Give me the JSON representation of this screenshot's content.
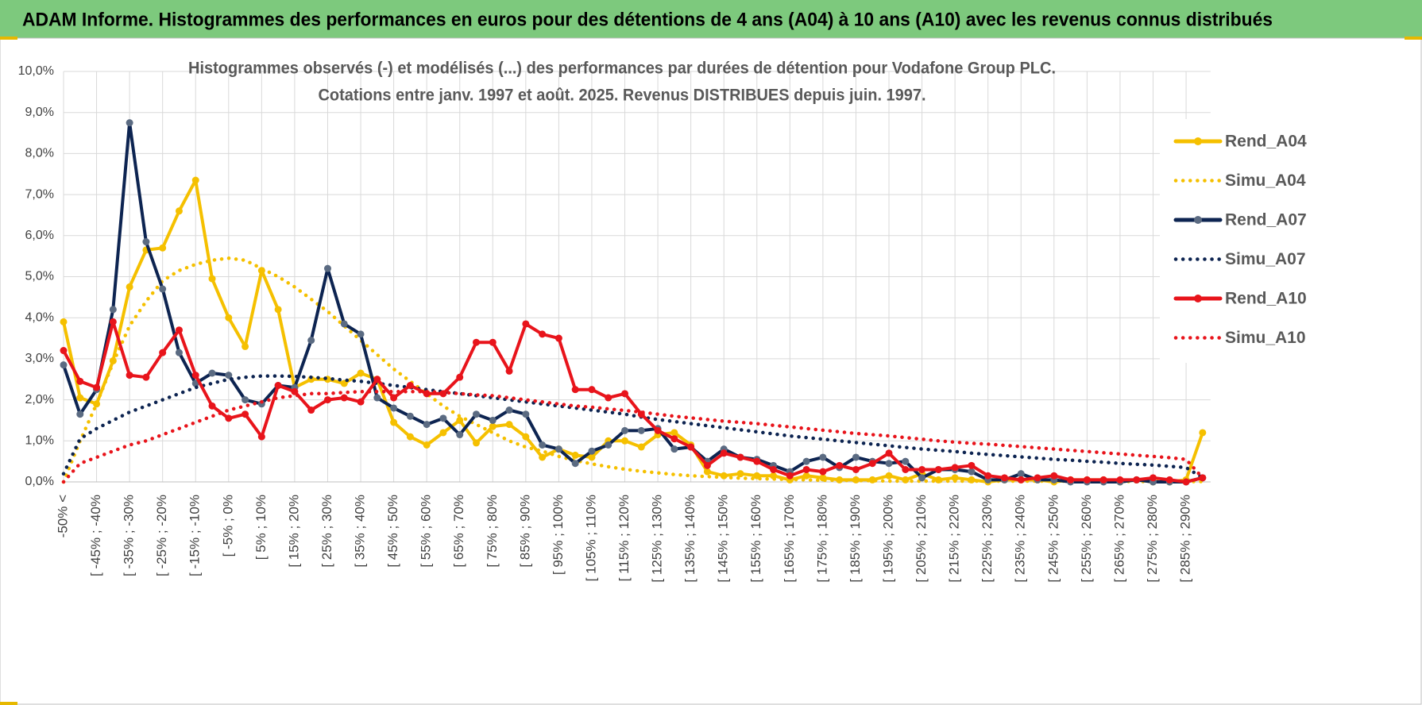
{
  "header": {
    "title": "ADAM Informe. Histogrammes des performances en euros pour des détentions de 4 ans (A04) à 10 ans (A10) avec les revenus connus distribués"
  },
  "chart_data": {
    "type": "line",
    "title": "Histogrammes observés (-) et modélisés (...) des performances par durées de détention pour Vodafone Group PLC.",
    "subtitle": "Cotations entre janv. 1997 et août. 2025. Revenus DISTRIBUES depuis juin. 1997.",
    "categories": [
      "-50% <",
      null,
      "[ -45% ; -40%",
      null,
      "[ -35% ; -30%",
      null,
      "[ -25% ; -20%",
      null,
      "[ -15% ; -10%",
      null,
      "[ -5% ; 0%",
      null,
      "[ 5% ; 10%",
      null,
      "[ 15% ; 20%",
      null,
      "[ 25% ; 30%",
      null,
      "[ 35% ; 40%",
      null,
      "[ 45% ; 50%",
      null,
      "[ 55% ; 60%",
      null,
      "[ 65% ; 70%",
      null,
      "[ 75% ; 80%",
      null,
      "[ 85% ; 90%",
      null,
      "[ 95% ; 100%",
      null,
      "[ 105% ; 110%",
      null,
      "[ 115% ; 120%",
      null,
      "[ 125% ; 130%",
      null,
      "[ 135% ; 140%",
      null,
      "[ 145% ; 150%",
      null,
      "[ 155% ; 160%",
      null,
      "[ 165% ; 170%",
      null,
      "[ 175% ; 180%",
      null,
      "[ 185% ; 190%",
      null,
      "[ 195% ; 200%",
      null,
      "[ 205% ; 210%",
      null,
      "[ 215% ; 220%",
      null,
      "[ 225% ; 230%",
      null,
      "[ 235% ; 240%",
      null,
      "[ 245% ; 250%",
      null,
      "[ 255% ; 260%",
      null,
      "[ 265% ; 270%",
      null,
      "[ 275% ; 280%",
      null,
      "[ 285% ; 290%",
      null
    ],
    "ylim": [
      0,
      10
    ],
    "yticks": [
      {
        "value": 0,
        "label": "0,0%"
      },
      {
        "value": 1,
        "label": "1,0%"
      },
      {
        "value": 2,
        "label": "2,0%"
      },
      {
        "value": 3,
        "label": "3,0%"
      },
      {
        "value": 4,
        "label": "4,0%"
      },
      {
        "value": 5,
        "label": "5,0%"
      },
      {
        "value": 6,
        "label": "6,0%"
      },
      {
        "value": 7,
        "label": "7,0%"
      },
      {
        "value": 8,
        "label": "8,0%"
      },
      {
        "value": 9,
        "label": "9,0%"
      },
      {
        "value": 10,
        "label": "10,0%"
      }
    ],
    "grid": true,
    "legend": "right",
    "series": [
      {
        "name": "Rend_A04",
        "color": "#f5c000",
        "line_style": "solid",
        "markers": true,
        "values": [
          3.9,
          2.05,
          1.9,
          2.95,
          4.75,
          5.65,
          5.7,
          6.6,
          7.35,
          4.95,
          4.0,
          3.3,
          5.15,
          4.2,
          2.3,
          2.5,
          2.5,
          2.4,
          2.65,
          2.5,
          1.45,
          1.1,
          0.9,
          1.2,
          1.5,
          0.95,
          1.35,
          1.4,
          1.1,
          0.6,
          0.8,
          0.65,
          0.6,
          1.0,
          1.0,
          0.85,
          1.15,
          1.2,
          0.9,
          0.25,
          0.15,
          0.2,
          0.15,
          0.15,
          0.05,
          0.15,
          0.1,
          0.05,
          0.05,
          0.05,
          0.15,
          0.05,
          0.2,
          0.05,
          0.1,
          0.05,
          0.0,
          0.05,
          0.05,
          0.05,
          0.0,
          0.05,
          0.05,
          0.05,
          0.0,
          0.05,
          0.0,
          0.0,
          0.05,
          1.2
        ]
      },
      {
        "name": "Simu_A04",
        "color": "#f5c000",
        "line_style": "dotted",
        "markers": false,
        "values": [
          0.0,
          1.0,
          1.9,
          2.9,
          3.8,
          4.4,
          4.9,
          5.15,
          5.3,
          5.4,
          5.45,
          5.4,
          5.2,
          5.0,
          4.75,
          4.45,
          4.15,
          3.8,
          3.45,
          3.1,
          2.75,
          2.45,
          2.15,
          1.85,
          1.6,
          1.4,
          1.2,
          1.0,
          0.85,
          0.75,
          0.62,
          0.52,
          0.44,
          0.37,
          0.31,
          0.26,
          0.22,
          0.18,
          0.15,
          0.13,
          0.11,
          0.09,
          0.08,
          0.07,
          0.06,
          0.05,
          0.04,
          0.04,
          0.03,
          0.03,
          0.02,
          0.02,
          0.02,
          0.02,
          0.02,
          0.02,
          0.02,
          0.02,
          0.02,
          0.02,
          0.02,
          0.02,
          0.02,
          0.02,
          0.01,
          0.01,
          0.01,
          0.01,
          0.01,
          0.01
        ]
      },
      {
        "name": "Rend_A07",
        "color": "#0d2451",
        "line_style": "solid",
        "markers": true,
        "values": [
          2.85,
          1.65,
          2.25,
          4.2,
          8.75,
          5.85,
          4.7,
          3.15,
          2.4,
          2.65,
          2.6,
          2.0,
          1.9,
          2.35,
          2.3,
          3.45,
          5.2,
          3.85,
          3.6,
          2.05,
          1.8,
          1.6,
          1.4,
          1.55,
          1.15,
          1.65,
          1.5,
          1.75,
          1.65,
          0.9,
          0.8,
          0.45,
          0.75,
          0.9,
          1.25,
          1.25,
          1.3,
          0.8,
          0.85,
          0.5,
          0.8,
          0.6,
          0.55,
          0.4,
          0.25,
          0.5,
          0.6,
          0.35,
          0.6,
          0.5,
          0.45,
          0.5,
          0.1,
          0.3,
          0.3,
          0.25,
          0.05,
          0.05,
          0.2,
          0.05,
          0.05,
          0.0,
          0.0,
          0.0,
          0.0,
          0.05,
          0.0,
          0.0,
          0.0,
          0.1
        ]
      },
      {
        "name": "Simu_A07",
        "color": "#0d2451",
        "line_style": "dotted",
        "markers": false,
        "values": [
          0.2,
          1.05,
          1.3,
          1.5,
          1.7,
          1.85,
          2.0,
          2.15,
          2.3,
          2.4,
          2.5,
          2.55,
          2.58,
          2.58,
          2.57,
          2.55,
          2.52,
          2.48,
          2.45,
          2.4,
          2.35,
          2.3,
          2.25,
          2.2,
          2.15,
          2.1,
          2.05,
          2.0,
          1.95,
          1.9,
          1.85,
          1.8,
          1.75,
          1.7,
          1.65,
          1.58,
          1.52,
          1.47,
          1.42,
          1.37,
          1.32,
          1.27,
          1.22,
          1.17,
          1.12,
          1.08,
          1.04,
          1.0,
          0.96,
          0.92,
          0.88,
          0.84,
          0.8,
          0.77,
          0.74,
          0.7,
          0.67,
          0.64,
          0.61,
          0.58,
          0.55,
          0.53,
          0.5,
          0.48,
          0.45,
          0.43,
          0.41,
          0.38,
          0.35,
          0.1
        ]
      },
      {
        "name": "Rend_A10",
        "color": "#e8141b",
        "line_style": "solid",
        "markers": true,
        "values": [
          3.2,
          2.45,
          2.3,
          3.9,
          2.6,
          2.55,
          3.15,
          3.7,
          2.6,
          1.85,
          1.55,
          1.65,
          1.1,
          2.35,
          2.2,
          1.75,
          2.0,
          2.05,
          1.95,
          2.5,
          2.05,
          2.35,
          2.15,
          2.15,
          2.55,
          3.4,
          3.4,
          2.7,
          3.85,
          3.6,
          3.5,
          2.25,
          2.25,
          2.05,
          2.15,
          1.65,
          1.25,
          1.05,
          0.85,
          0.4,
          0.7,
          0.6,
          0.5,
          0.3,
          0.15,
          0.3,
          0.25,
          0.4,
          0.3,
          0.45,
          0.7,
          0.3,
          0.3,
          0.3,
          0.35,
          0.4,
          0.15,
          0.1,
          0.05,
          0.1,
          0.15,
          0.05,
          0.05,
          0.05,
          0.05,
          0.05,
          0.1,
          0.05,
          0.0,
          0.1
        ]
      },
      {
        "name": "Simu_A10",
        "color": "#e8141b",
        "line_style": "dotted",
        "markers": false,
        "values": [
          0.0,
          0.45,
          0.6,
          0.75,
          0.9,
          1.0,
          1.15,
          1.3,
          1.45,
          1.6,
          1.75,
          1.85,
          1.95,
          2.05,
          2.1,
          2.15,
          2.15,
          2.18,
          2.2,
          2.2,
          2.2,
          2.2,
          2.2,
          2.18,
          2.15,
          2.12,
          2.1,
          2.05,
          2.0,
          1.95,
          1.9,
          1.85,
          1.82,
          1.78,
          1.74,
          1.7,
          1.65,
          1.6,
          1.56,
          1.52,
          1.48,
          1.45,
          1.42,
          1.38,
          1.34,
          1.3,
          1.26,
          1.22,
          1.18,
          1.15,
          1.12,
          1.08,
          1.04,
          1.0,
          0.97,
          0.94,
          0.92,
          0.89,
          0.86,
          0.83,
          0.8,
          0.77,
          0.74,
          0.71,
          0.68,
          0.65,
          0.62,
          0.59,
          0.55,
          0.1
        ]
      }
    ]
  }
}
